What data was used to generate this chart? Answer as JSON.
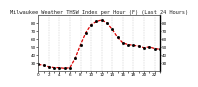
{
  "title": "Milwaukee Weather THSW Index per Hour (F) (Last 24 Hours)",
  "background_color": "#ffffff",
  "plot_background": "#ffffff",
  "line_color": "#dd0000",
  "marker_color": "#000000",
  "grid_color": "#aaaaaa",
  "hours": [
    0,
    1,
    2,
    3,
    4,
    5,
    6,
    7,
    8,
    9,
    10,
    11,
    12,
    13,
    14,
    15,
    16,
    17,
    18,
    19,
    20,
    21,
    22,
    23
  ],
  "values": [
    28,
    27,
    25,
    24,
    24,
    23,
    24,
    36,
    53,
    68,
    78,
    82,
    84,
    80,
    72,
    62,
    55,
    53,
    52,
    51,
    49,
    50,
    48,
    47
  ],
  "ylim_min": 20,
  "ylim_max": 90,
  "ytick_values": [
    30,
    40,
    50,
    60,
    70,
    80
  ],
  "ytick_labels_left": [
    "30",
    "40",
    "50",
    "60",
    "70",
    "80"
  ],
  "ytick_labels_right": [
    "30",
    "40",
    "50",
    "60",
    "70",
    "80"
  ],
  "title_fontsize": 3.8,
  "tick_fontsize": 3.0,
  "vertical_grid_hours": [
    0,
    2,
    4,
    6,
    8,
    10,
    12,
    14,
    16,
    18,
    20,
    22,
    24
  ]
}
